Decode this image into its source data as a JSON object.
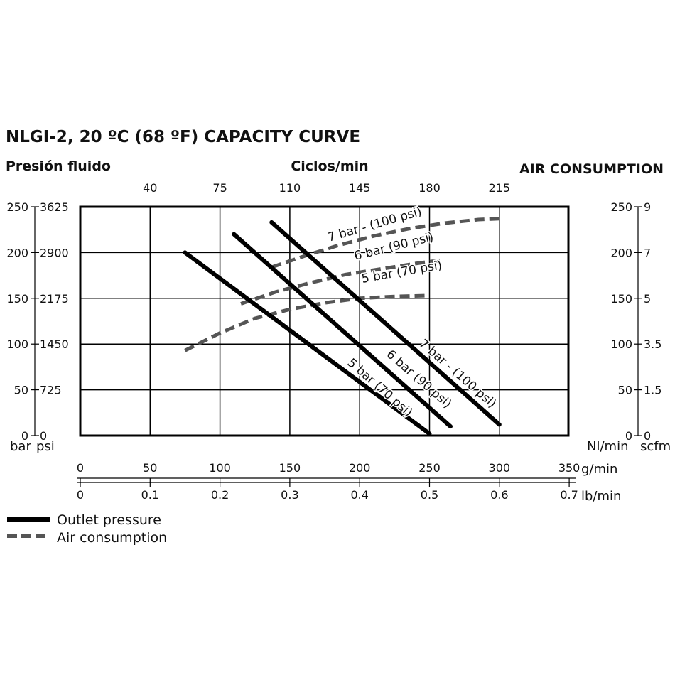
{
  "chart_data": {
    "type": "line",
    "title": "NLGI-2, 20 ºC (68 ºF) CAPACITY CURVE",
    "left_axis_title": "Presión fluido",
    "top_axis_title": "Ciclos/min",
    "right_axis_title": "AIR CONSUMPTION",
    "cycles_ticks": [
      {
        "label": "40",
        "gmin": 50
      },
      {
        "label": "75",
        "gmin": 100
      },
      {
        "label": "110",
        "gmin": 150
      },
      {
        "label": "145",
        "gmin": 200
      },
      {
        "label": "180",
        "gmin": 250
      },
      {
        "label": "215",
        "gmin": 300
      }
    ],
    "left_ticks": [
      {
        "bar": "250",
        "psi": "3625",
        "value": 250
      },
      {
        "bar": "200",
        "psi": "2900",
        "value": 200
      },
      {
        "bar": "150",
        "psi": "2175",
        "value": 150
      },
      {
        "bar": "100",
        "psi": "1450",
        "value": 100
      },
      {
        "bar": "50",
        "psi": "725",
        "value": 50
      },
      {
        "bar": "0",
        "psi": "0",
        "value": 0
      }
    ],
    "left_unit_bar": "bar",
    "left_unit_psi": "psi",
    "right_ticks": [
      {
        "nlmin": "250",
        "scfm": "9",
        "value": 250
      },
      {
        "nlmin": "200",
        "scfm": "7",
        "value": 200
      },
      {
        "nlmin": "150",
        "scfm": "5",
        "value": 150
      },
      {
        "nlmin": "100",
        "scfm": "3.5",
        "value": 100
      },
      {
        "nlmin": "50",
        "scfm": "1.5",
        "value": 50
      },
      {
        "nlmin": "0",
        "scfm": "0",
        "value": 0
      }
    ],
    "right_unit_nlmin": "Nl/min",
    "right_unit_scfm": "scfm",
    "x_gmin_ticks": [
      "0",
      "50",
      "100",
      "150",
      "200",
      "250",
      "300",
      "350"
    ],
    "x_gmin_unit": "g/min",
    "x_lbmin_ticks": [
      "0",
      "0.1",
      "0.2",
      "0.3",
      "0.4",
      "0.5",
      "0.6",
      "0.7"
    ],
    "x_lbmin_unit": "lb/min",
    "xlim": [
      0,
      350
    ],
    "ylim": [
      0,
      250
    ],
    "outlet_pressure_series": [
      {
        "label": "5 bar (70 psi)",
        "x": [
          75,
          250
        ],
        "y": [
          200,
          2
        ]
      },
      {
        "label": "6 bar (90 psi)",
        "x": [
          110,
          265
        ],
        "y": [
          220,
          10
        ]
      },
      {
        "label": "7 bar - (100 psi)",
        "x": [
          137,
          300
        ],
        "y": [
          233,
          12
        ]
      }
    ],
    "air_consumption_series": [
      {
        "label": "5 bar (70 psi)",
        "x": [
          75,
          100,
          125,
          150,
          175,
          200,
          225,
          250
        ],
        "y": [
          93,
          112,
          128,
          138,
          145,
          150,
          152,
          153
        ]
      },
      {
        "label": "6 bar (90 psi)",
        "x": [
          115,
          140,
          165,
          190,
          215,
          240,
          260
        ],
        "y": [
          144,
          157,
          167,
          176,
          182,
          188,
          192
        ]
      },
      {
        "label": "7 bar - (100 psi)",
        "x": [
          137,
          160,
          185,
          210,
          235,
          260,
          285,
          300
        ],
        "y": [
          184,
          196,
          208,
          218,
          226,
          232,
          236,
          237
        ]
      }
    ],
    "legend": [
      {
        "label": "Outlet pressure",
        "style": "solid",
        "color": "#000000"
      },
      {
        "label": "Air consumption",
        "style": "dashed",
        "color": "#555555"
      }
    ],
    "colors": {
      "outlet": "#000000",
      "air": "#555555",
      "grid": "#000000"
    },
    "grid": true
  }
}
